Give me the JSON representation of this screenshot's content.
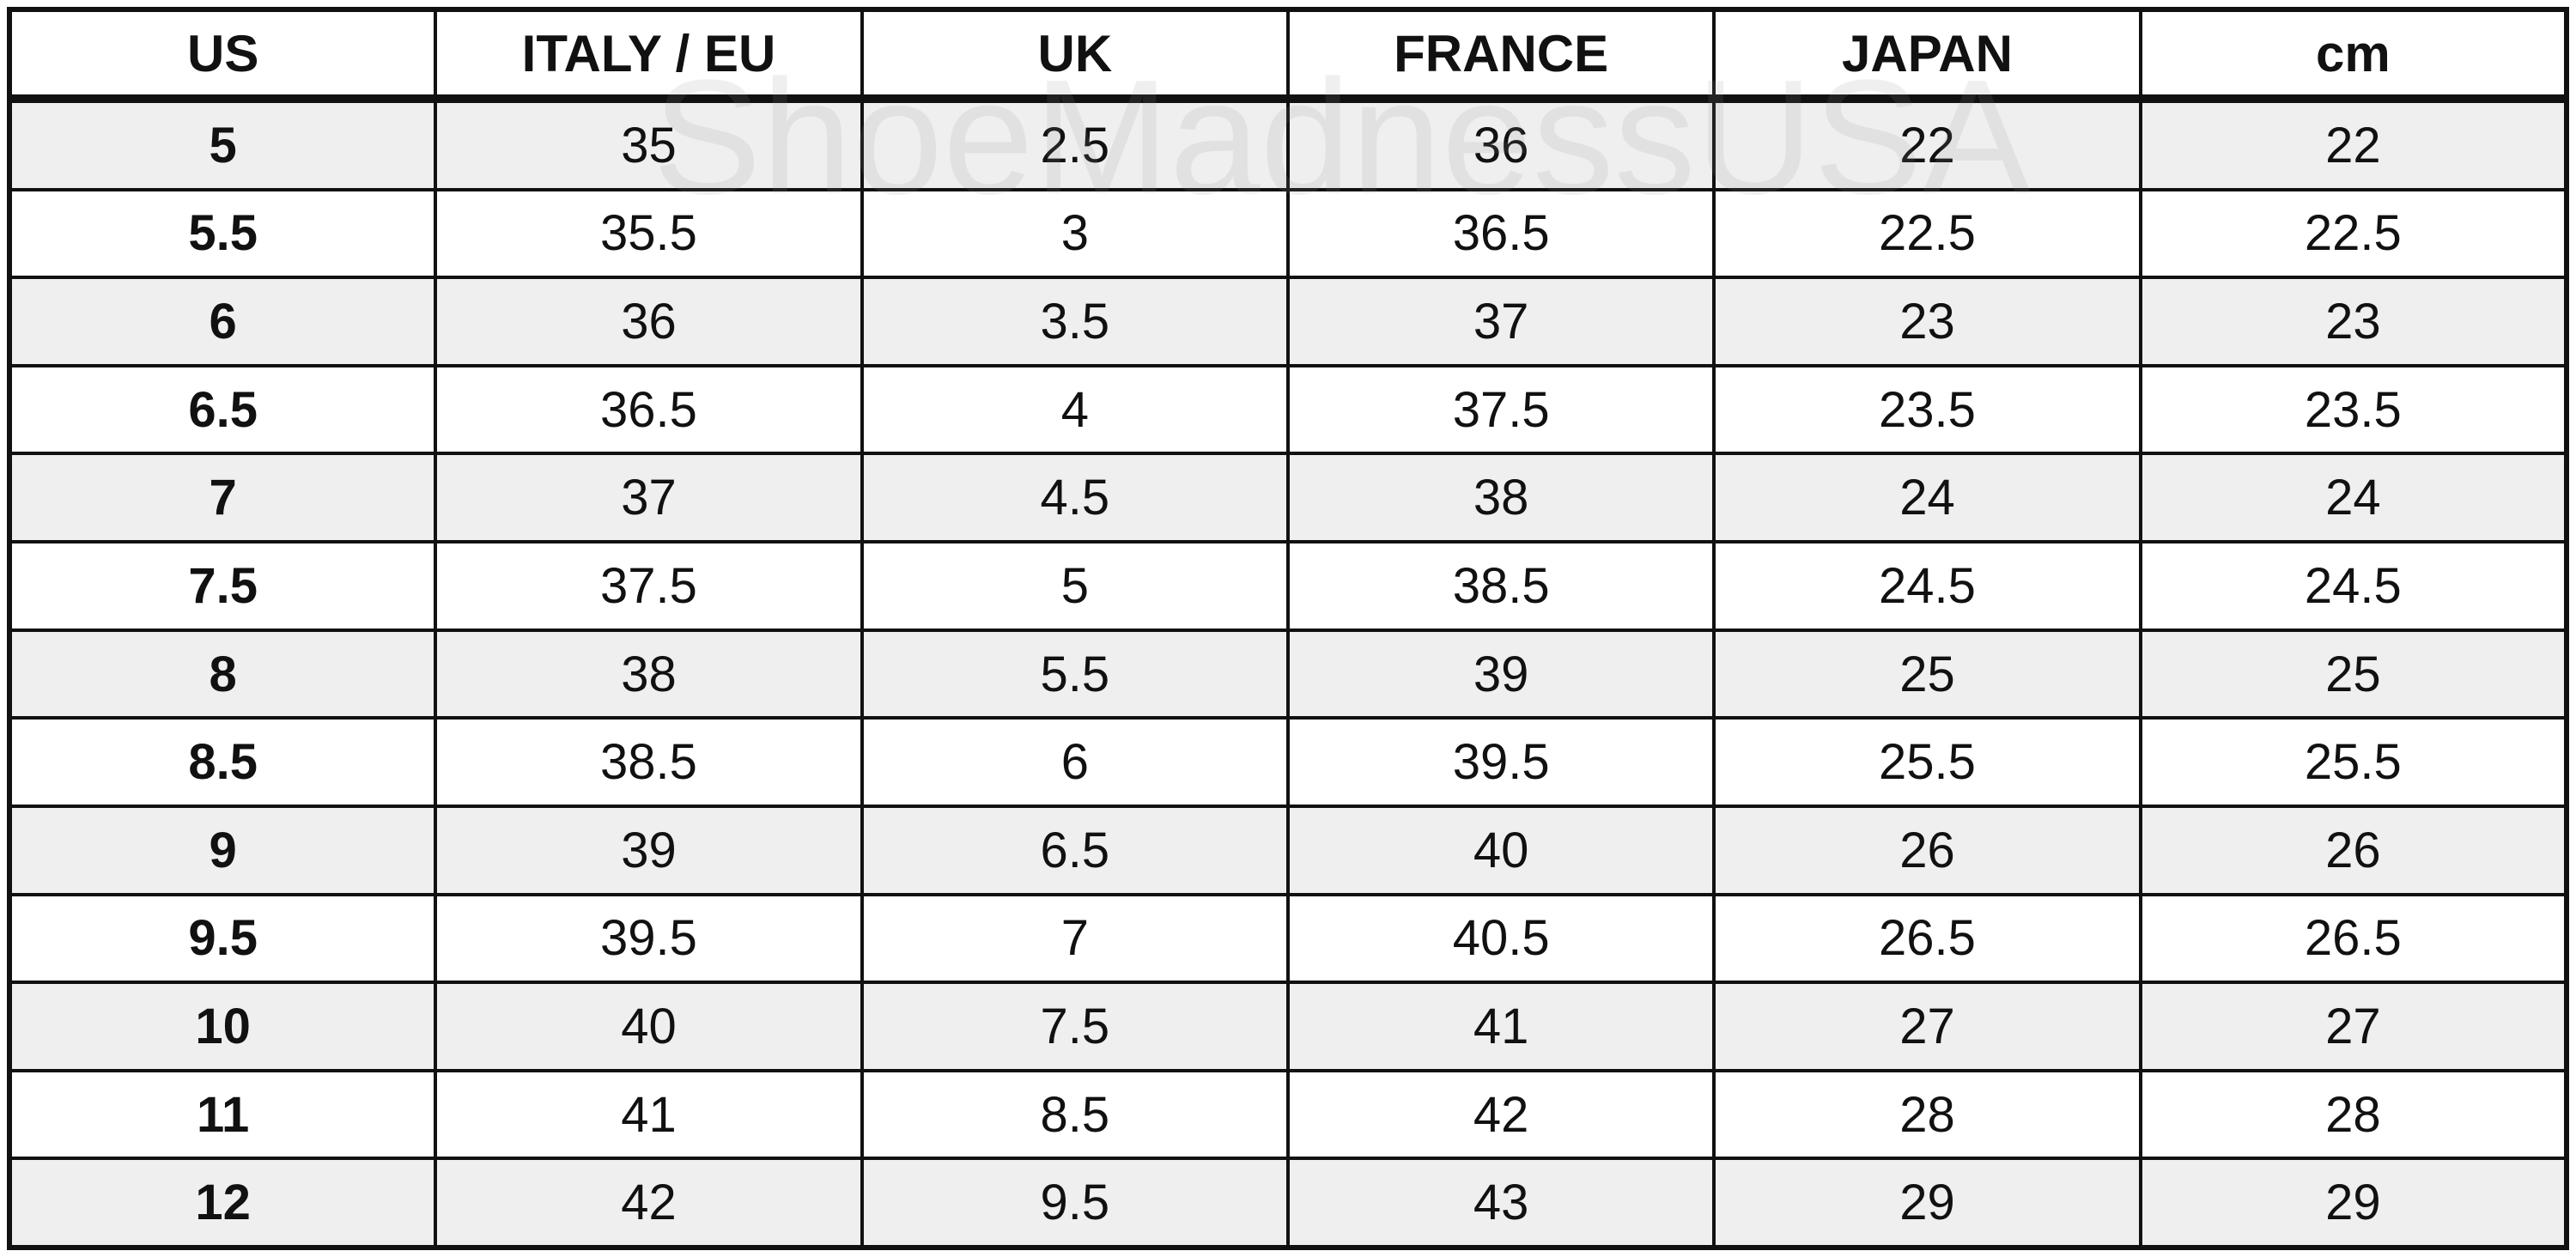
{
  "table": {
    "headers": [
      "US",
      "ITALY / EU",
      "UK",
      "FRANCE",
      "JAPAN",
      "cm"
    ],
    "rows": [
      [
        "5",
        "35",
        "2.5",
        "36",
        "22",
        "22"
      ],
      [
        "5.5",
        "35.5",
        "3",
        "36.5",
        "22.5",
        "22.5"
      ],
      [
        "6",
        "36",
        "3.5",
        "37",
        "23",
        "23"
      ],
      [
        "6.5",
        "36.5",
        "4",
        "37.5",
        "23.5",
        "23.5"
      ],
      [
        "7",
        "37",
        "4.5",
        "38",
        "24",
        "24"
      ],
      [
        "7.5",
        "37.5",
        "5",
        "38.5",
        "24.5",
        "24.5"
      ],
      [
        "8",
        "38",
        "5.5",
        "39",
        "25",
        "25"
      ],
      [
        "8.5",
        "38.5",
        "6",
        "39.5",
        "25.5",
        "25.5"
      ],
      [
        "9",
        "39",
        "6.5",
        "40",
        "26",
        "26"
      ],
      [
        "9.5",
        "39.5",
        "7",
        "40.5",
        "26.5",
        "26.5"
      ],
      [
        "10",
        "40",
        "7.5",
        "41",
        "27",
        "27"
      ],
      [
        "11",
        "41",
        "8.5",
        "42",
        "28",
        "28"
      ],
      [
        "12",
        "42",
        "9.5",
        "43",
        "29",
        "29"
      ]
    ]
  },
  "watermark": "ShoeMadnessUSA",
  "colors": {
    "border": "#111111",
    "shaded_row": "#efefef",
    "plain_row": "#ffffff",
    "text": "#111111"
  }
}
